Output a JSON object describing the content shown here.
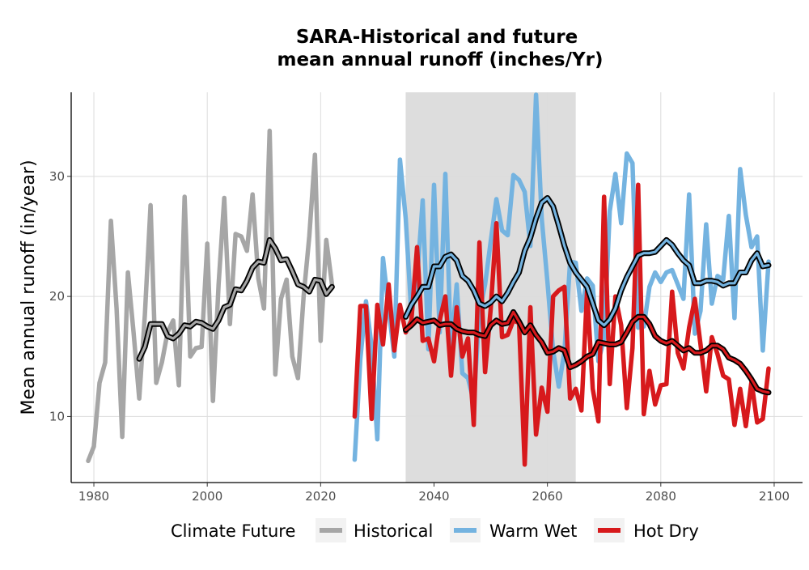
{
  "chart_data": {
    "type": "line",
    "title_line1": "SARA-Historical and future",
    "title_line2": "mean annual runoff (inches/Yr)",
    "xlabel": "",
    "ylabel": "Mean annual runoff (in/year)",
    "xlim": [
      1976,
      2105
    ],
    "ylim": [
      4.5,
      37
    ],
    "x_ticks": [
      1980,
      2000,
      2020,
      2040,
      2060,
      2080,
      2100
    ],
    "y_ticks": [
      10,
      20,
      30
    ],
    "grid": true,
    "shaded_period": [
      2035,
      2065
    ],
    "legend": {
      "title": "Climate Future",
      "position": "bottom"
    },
    "series": [
      {
        "name": "Historical",
        "color": "#a6a6a6",
        "x": [
          1979,
          1980,
          1981,
          1982,
          1983,
          1984,
          1985,
          1986,
          1987,
          1988,
          1989,
          1990,
          1991,
          1992,
          1993,
          1994,
          1995,
          1996,
          1997,
          1998,
          1999,
          2000,
          2001,
          2002,
          2003,
          2004,
          2005,
          2006,
          2007,
          2008,
          2009,
          2010,
          2011,
          2012,
          2013,
          2014,
          2015,
          2016,
          2017,
          2018,
          2019,
          2020,
          2021,
          2022
        ],
        "values": [
          6.3,
          7.5,
          12.8,
          14.5,
          26.3,
          19.0,
          8.3,
          22.0,
          17.0,
          11.5,
          18.5,
          27.6,
          12.8,
          14.5,
          17.0,
          18.0,
          12.6,
          28.3,
          15.0,
          15.7,
          15.8,
          24.4,
          11.3,
          21.0,
          28.2,
          17.7,
          25.2,
          25.0,
          23.8,
          28.5,
          21.5,
          19.0,
          33.8,
          13.5,
          19.8,
          21.4,
          15.0,
          13.2,
          20.0,
          25.0,
          31.8,
          16.3,
          24.7,
          21.0
        ]
      },
      {
        "name": "Warm Wet",
        "color": "#74b3e0",
        "x": [
          2026,
          2027,
          2028,
          2029,
          2030,
          2031,
          2032,
          2033,
          2034,
          2035,
          2036,
          2037,
          2038,
          2039,
          2040,
          2041,
          2042,
          2043,
          2044,
          2045,
          2046,
          2047,
          2048,
          2049,
          2050,
          2051,
          2052,
          2053,
          2054,
          2055,
          2056,
          2057,
          2058,
          2059,
          2060,
          2061,
          2062,
          2063,
          2064,
          2065,
          2066,
          2067,
          2068,
          2069,
          2070,
          2071,
          2072,
          2073,
          2074,
          2075,
          2076,
          2077,
          2078,
          2079,
          2080,
          2081,
          2082,
          2083,
          2084,
          2085,
          2086,
          2087,
          2088,
          2089,
          2090,
          2091,
          2092,
          2093,
          2094,
          2095,
          2096,
          2097,
          2098,
          2099
        ],
        "values": [
          6.4,
          14.8,
          19.6,
          15.8,
          8.1,
          23.2,
          19.0,
          15.0,
          31.4,
          26.5,
          18.5,
          21.4,
          28.0,
          15.6,
          29.3,
          17.0,
          30.2,
          15.4,
          21.0,
          13.6,
          13.2,
          11.2,
          18.7,
          21.0,
          24.6,
          28.1,
          25.5,
          25.1,
          30.1,
          29.7,
          28.7,
          24.2,
          36.8,
          26.5,
          21.2,
          15.5,
          12.5,
          15.4,
          22.9,
          22.8,
          18.8,
          21.5,
          20.9,
          14.6,
          16.5,
          27.1,
          30.2,
          26.1,
          31.9,
          31.1,
          17.4,
          17.5,
          20.8,
          22.0,
          21.2,
          22.0,
          22.2,
          21.0,
          19.8,
          28.5,
          16.9,
          18.8,
          26.0,
          19.4,
          21.7,
          21.4,
          26.7,
          18.2,
          30.6,
          26.8,
          24.1,
          25.0,
          15.5,
          22.9
        ]
      },
      {
        "name": "Hot Dry",
        "color": "#d7191c",
        "x": [
          2026,
          2027,
          2028,
          2029,
          2030,
          2031,
          2032,
          2033,
          2034,
          2035,
          2036,
          2037,
          2038,
          2039,
          2040,
          2041,
          2042,
          2043,
          2044,
          2045,
          2046,
          2047,
          2048,
          2049,
          2050,
          2051,
          2052,
          2053,
          2054,
          2055,
          2056,
          2057,
          2058,
          2059,
          2060,
          2061,
          2062,
          2063,
          2064,
          2065,
          2066,
          2067,
          2068,
          2069,
          2070,
          2071,
          2072,
          2073,
          2074,
          2075,
          2076,
          2077,
          2078,
          2079,
          2080,
          2081,
          2082,
          2083,
          2084,
          2085,
          2086,
          2087,
          2088,
          2089,
          2090,
          2091,
          2092,
          2093,
          2094,
          2095,
          2096,
          2097,
          2098,
          2099
        ],
        "values": [
          10.0,
          19.2,
          19.2,
          9.8,
          19.3,
          16.0,
          21.0,
          15.5,
          19.3,
          17.0,
          18.0,
          24.1,
          16.3,
          16.5,
          14.6,
          18.0,
          20.0,
          13.4,
          19.1,
          15.0,
          16.5,
          9.3,
          24.5,
          13.7,
          19.0,
          26.1,
          16.6,
          16.8,
          18.0,
          17.8,
          6.0,
          19.1,
          8.5,
          12.4,
          10.4,
          20.0,
          20.5,
          20.8,
          11.5,
          12.3,
          10.5,
          20.5,
          12.3,
          9.6,
          28.3,
          12.7,
          20.0,
          17.6,
          10.7,
          15.7,
          29.3,
          10.2,
          13.8,
          11.0,
          12.6,
          12.7,
          20.4,
          15.3,
          14.0,
          17.4,
          19.8,
          16.0,
          12.1,
          16.6,
          15.2,
          13.4,
          13.1,
          9.3,
          12.3,
          9.2,
          12.9,
          9.5,
          9.8,
          14.0
        ]
      },
      {
        "name": "",
        "role": "historical-smoothed",
        "color": "#a6a6a6",
        "x": [
          1988,
          1989,
          1990,
          1991,
          1992,
          1993,
          1994,
          1995,
          1996,
          1997,
          1998,
          1999,
          2000,
          2001,
          2002,
          2003,
          2004,
          2005,
          2006,
          2007,
          2008,
          2009,
          2010,
          2011,
          2012,
          2013,
          2014,
          2015,
          2016,
          2017,
          2018,
          2019,
          2020,
          2021,
          2022
        ],
        "values": [
          14.8,
          15.8,
          17.7,
          17.7,
          17.7,
          16.7,
          16.5,
          16.9,
          17.6,
          17.5,
          17.9,
          17.8,
          17.5,
          17.3,
          18.0,
          19.1,
          19.3,
          20.6,
          20.5,
          21.3,
          22.4,
          22.9,
          22.8,
          24.7,
          24.0,
          23.0,
          23.1,
          22.1,
          21.0,
          20.8,
          20.4,
          21.4,
          21.3,
          20.2,
          20.8
        ]
      },
      {
        "name": "",
        "role": "warm-wet-smoothed",
        "color": "#74b3e0",
        "x": [
          2035,
          2036,
          2037,
          2038,
          2039,
          2040,
          2041,
          2042,
          2043,
          2044,
          2045,
          2046,
          2047,
          2048,
          2049,
          2050,
          2051,
          2052,
          2053,
          2054,
          2055,
          2056,
          2057,
          2058,
          2059,
          2060,
          2061,
          2062,
          2063,
          2064,
          2065,
          2066,
          2067,
          2068,
          2069,
          2070,
          2071,
          2072,
          2073,
          2074,
          2075,
          2076,
          2077,
          2078,
          2079,
          2080,
          2081,
          2082,
          2083,
          2084,
          2085,
          2086,
          2087,
          2088,
          2089,
          2090,
          2091,
          2092,
          2093,
          2094,
          2095,
          2096,
          2097,
          2098,
          2099
        ],
        "values": [
          18.3,
          19.3,
          20.0,
          20.8,
          20.8,
          22.5,
          22.5,
          23.3,
          23.5,
          23.0,
          21.7,
          21.3,
          20.5,
          19.4,
          19.2,
          19.5,
          20.0,
          19.6,
          20.3,
          21.2,
          22.0,
          23.8,
          24.9,
          26.5,
          27.8,
          28.2,
          27.5,
          25.9,
          24.2,
          22.8,
          22.0,
          21.4,
          20.8,
          19.4,
          18.0,
          17.6,
          18.1,
          19.0,
          20.5,
          21.6,
          22.5,
          23.4,
          23.6,
          23.6,
          23.7,
          24.2,
          24.7,
          24.3,
          23.6,
          23.0,
          22.6,
          21.1,
          21.1,
          21.3,
          21.3,
          21.2,
          20.9,
          21.1,
          21.1,
          22.0,
          22.0,
          23.0,
          23.6,
          22.5,
          22.6
        ]
      },
      {
        "name": "",
        "role": "hot-dry-smoothed",
        "color": "#d7191c",
        "x": [
          2035,
          2036,
          2037,
          2038,
          2039,
          2040,
          2041,
          2042,
          2043,
          2044,
          2045,
          2046,
          2047,
          2048,
          2049,
          2050,
          2051,
          2052,
          2053,
          2054,
          2055,
          2056,
          2057,
          2058,
          2059,
          2060,
          2061,
          2062,
          2063,
          2064,
          2065,
          2066,
          2067,
          2068,
          2069,
          2070,
          2071,
          2072,
          2073,
          2074,
          2075,
          2076,
          2077,
          2078,
          2079,
          2080,
          2081,
          2082,
          2083,
          2084,
          2085,
          2086,
          2087,
          2088,
          2089,
          2090,
          2091,
          2092,
          2093,
          2094,
          2095,
          2096,
          2097,
          2098,
          2099
        ],
        "values": [
          17.2,
          17.6,
          18.1,
          17.8,
          17.9,
          18.0,
          17.6,
          17.7,
          17.7,
          17.3,
          17.1,
          17.0,
          17.0,
          16.8,
          16.7,
          17.6,
          18.0,
          17.7,
          17.8,
          18.7,
          17.9,
          17.0,
          17.6,
          16.8,
          16.2,
          15.3,
          15.4,
          15.7,
          15.5,
          14.1,
          14.3,
          14.6,
          15.0,
          15.2,
          16.2,
          16.1,
          16.0,
          16.0,
          16.2,
          17.0,
          17.9,
          18.3,
          18.3,
          17.7,
          16.7,
          16.3,
          16.1,
          16.3,
          15.9,
          15.5,
          15.7,
          15.3,
          15.3,
          15.5,
          15.9,
          15.9,
          15.6,
          14.9,
          14.7,
          14.4,
          13.8,
          13.1,
          12.3,
          12.1,
          12.0
        ]
      }
    ]
  }
}
